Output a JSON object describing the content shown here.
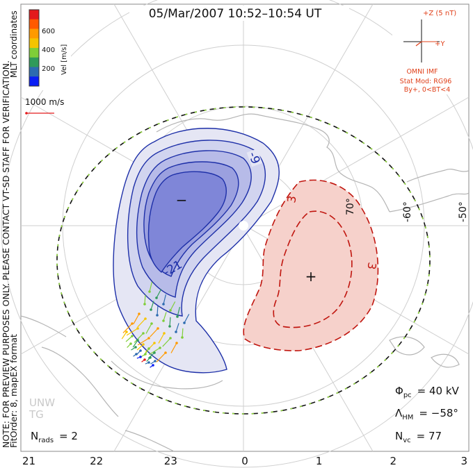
{
  "title": "05/Mar/2007 10:52–10:54 UT",
  "colorbar": {
    "tick_labels": [
      "600",
      "400",
      "200"
    ],
    "unit_label": "Vel [m/s]",
    "colors": [
      "#e31a1c",
      "#ff5a00",
      "#ff9a00",
      "#f5c400",
      "#7fce38",
      "#2f9a5a",
      "#2c6bb0",
      "#0a1ef5"
    ]
  },
  "mlt_coordinates_label": "MLT coordinates",
  "vector_scale_label": "1000 m/s",
  "side_notes": {
    "preview_note": "NOTE: FOR PREVIEW PURPOSES ONLY. PLEASE CONTACT VT-SD STAFF FOR VERIFICATION.",
    "fit_note": "FitOrder: 8, mapEX format"
  },
  "imf": {
    "z_label": "+Z (5 nT)",
    "y_label": "+Y",
    "source": "OMNI IMF",
    "stat_mod": "Stat Mod: RG96",
    "condition": "By+, 0<BT<4"
  },
  "latitude_labels": [
    "70°",
    "-60°",
    "-50°"
  ],
  "contour_labels": {
    "negative": [
      "-9",
      "-21"
    ],
    "positive": [
      "3",
      "3"
    ]
  },
  "cell_markers": {
    "negative": "−",
    "positive": "+"
  },
  "watermark": [
    "UNW",
    "TG"
  ],
  "stats": {
    "phi_pc_symbol": "Φ",
    "phi_pc_sub": "pc",
    "phi_pc_value": "= 40 kV",
    "lambda_hm_symbol": "Λ",
    "lambda_hm_sub": "HM",
    "lambda_hm_value": "= −58°",
    "n_vc_symbol": "N",
    "n_vc_sub": "vc",
    "n_vc_value": "= 77",
    "n_rads_symbol": "N",
    "n_rads_sub": "rads",
    "n_rads_value": "= 2"
  },
  "mlt_axis_labels": [
    "21",
    "22",
    "23",
    "0",
    "1",
    "2",
    "3"
  ],
  "colors": {
    "negative_contour": "#1d2fa8",
    "negative_fill": "#4a55d6",
    "positive_contour": "#c0150e",
    "positive_fill": "#f2b8b0",
    "annotation_red": "#e0401a",
    "boundary_green": "#8fd63a",
    "coast_gray": "#b4b4b4"
  }
}
